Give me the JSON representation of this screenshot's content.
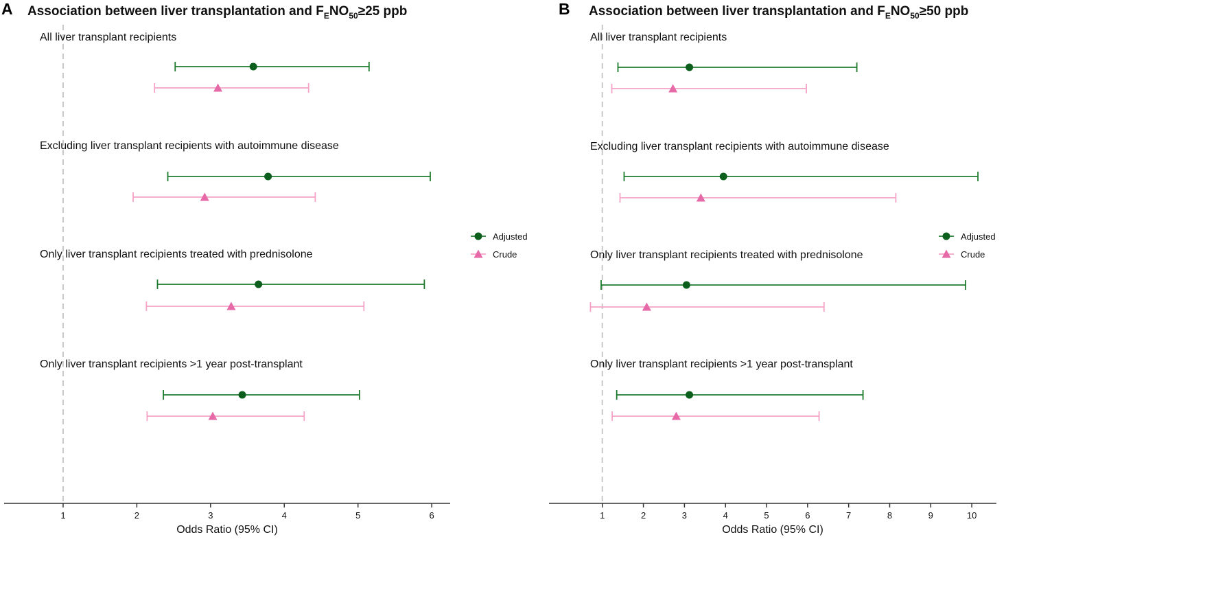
{
  "colors": {
    "adjusted": "#1e7b2e",
    "adjusted_marker": "#0b5e1c",
    "crude": "#f5a3c7",
    "crude_marker": "#e76aa8",
    "axis": "#333333",
    "refline": "#c8c8c8"
  },
  "panels": [
    {
      "letter": "A",
      "title": {
        "prefix": "Association between liver transplantation and F",
        "sub1": "E",
        "mid": "NO",
        "sub2": "50",
        "suffix": "≥25  ppb"
      }
    },
    {
      "letter": "B",
      "title": {
        "prefix": "Association between liver transplantation and F",
        "sub1": "E",
        "mid": "NO",
        "sub2": "50",
        "suffix": "≥50 ppb"
      }
    }
  ],
  "chart_data": [
    {
      "type": "forest",
      "xlabel": "Odds Ratio (95% CI)",
      "xlim": [
        0.2,
        6.25
      ],
      "xticks": [
        1,
        2,
        3,
        4,
        5,
        6
      ],
      "reference_line": 1,
      "legend": {
        "position": "right",
        "entries": [
          "Adjusted",
          "Crude"
        ]
      },
      "groups": [
        {
          "label": "All liver transplant recipients",
          "adjusted": {
            "or": 3.58,
            "lo": 2.52,
            "hi": 5.15
          },
          "crude": {
            "or": 3.1,
            "lo": 2.24,
            "hi": 4.33
          }
        },
        {
          "label": "Excluding liver transplant recipients with autoimmune disease",
          "adjusted": {
            "or": 3.78,
            "lo": 2.42,
            "hi": 5.98
          },
          "crude": {
            "or": 2.92,
            "lo": 1.95,
            "hi": 4.42
          }
        },
        {
          "label": "Only liver transplant recipients treated with prednisolone",
          "adjusted": {
            "or": 3.65,
            "lo": 2.28,
            "hi": 5.9
          },
          "crude": {
            "or": 3.28,
            "lo": 2.13,
            "hi": 5.08
          }
        },
        {
          "label": "Only liver transplant recipients >1 year post-transplant",
          "adjusted": {
            "or": 3.43,
            "lo": 2.36,
            "hi": 5.02
          },
          "crude": {
            "or": 3.03,
            "lo": 2.14,
            "hi": 4.27
          }
        }
      ]
    },
    {
      "type": "forest",
      "xlabel": "Odds Ratio (95% CI)",
      "xlim": [
        -0.3,
        10.6
      ],
      "xticks": [
        1,
        2,
        3,
        4,
        5,
        6,
        7,
        8,
        9,
        10
      ],
      "reference_line": 1,
      "legend": {
        "position": "right",
        "entries": [
          "Adjusted",
          "Crude"
        ]
      },
      "groups": [
        {
          "label": "All liver transplant recipients",
          "adjusted": {
            "or": 3.12,
            "lo": 1.38,
            "hi": 7.2
          },
          "crude": {
            "or": 2.72,
            "lo": 1.23,
            "hi": 5.97
          }
        },
        {
          "label": "Excluding liver transplant recipients with autoimmune disease",
          "adjusted": {
            "or": 3.95,
            "lo": 1.53,
            "hi": 10.15
          },
          "crude": {
            "or": 3.4,
            "lo": 1.43,
            "hi": 8.15
          }
        },
        {
          "label": "Only liver transplant recipients treated with prednisolone",
          "adjusted": {
            "or": 3.05,
            "lo": 0.97,
            "hi": 9.85
          },
          "crude": {
            "or": 2.08,
            "lo": 0.71,
            "hi": 6.4
          }
        },
        {
          "label": "Only liver transplant recipients >1 year post-transplant",
          "adjusted": {
            "or": 3.12,
            "lo": 1.35,
            "hi": 7.35
          },
          "crude": {
            "or": 2.8,
            "lo": 1.24,
            "hi": 6.28
          }
        }
      ]
    }
  ]
}
